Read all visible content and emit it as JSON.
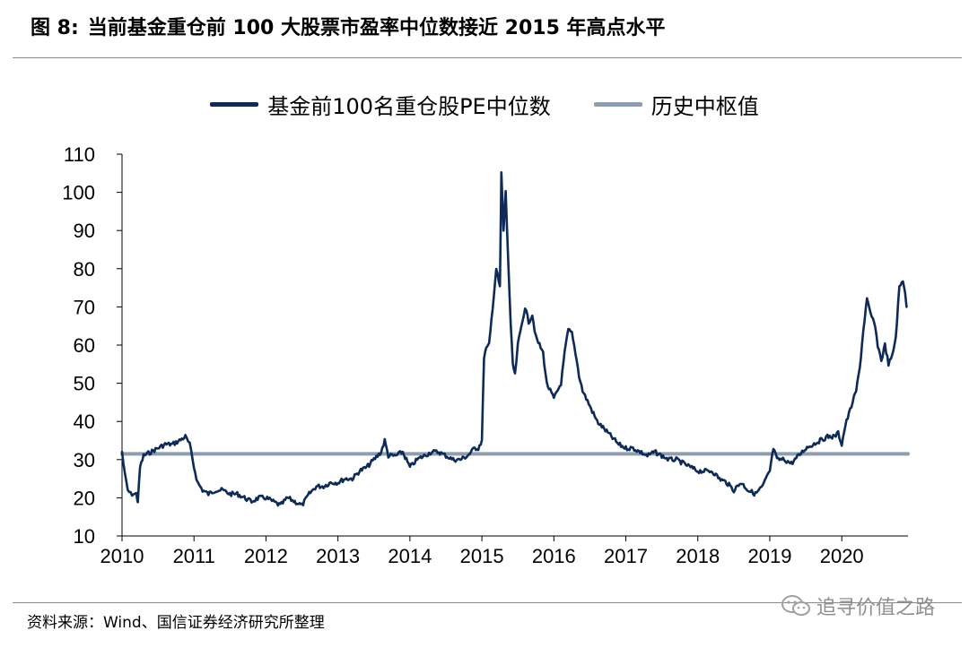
{
  "figure": {
    "number": "图 8:",
    "title": "当前基金重仓前 100 大股票市盈率中位数接近 2015 年高点水平"
  },
  "source": "资料来源：Wind、国信证券经济研究所整理",
  "watermark": {
    "text": "追寻价值之路",
    "icon": "wechat-icon"
  },
  "chart_data": {
    "type": "line",
    "title": "",
    "xlabel": "",
    "ylabel": "",
    "x_ticks": [
      "2010",
      "2011",
      "2012",
      "2013",
      "2014",
      "2015",
      "2016",
      "2017",
      "2018",
      "2019",
      "2020"
    ],
    "y_ticks": [
      10,
      20,
      30,
      40,
      50,
      60,
      70,
      80,
      90,
      100,
      110
    ],
    "xlim": [
      2010,
      2020.92
    ],
    "ylim": [
      10,
      110
    ],
    "grid": false,
    "legend": "top",
    "series": [
      {
        "name": "基金前100名重仓股PE中位数",
        "color": "#0e2a58",
        "x": [
          2010.0,
          2010.04,
          2010.08,
          2010.12,
          2010.16,
          2010.2,
          2010.22,
          2010.25,
          2010.3,
          2010.4,
          2010.5,
          2010.6,
          2010.7,
          2010.8,
          2010.88,
          2010.94,
          2011.0,
          2011.05,
          2011.12,
          2011.2,
          2011.3,
          2011.4,
          2011.5,
          2011.6,
          2011.7,
          2011.8,
          2011.9,
          2012.0,
          2012.1,
          2012.2,
          2012.3,
          2012.4,
          2012.5,
          2012.6,
          2012.7,
          2012.8,
          2012.9,
          2013.0,
          2013.1,
          2013.2,
          2013.3,
          2013.4,
          2013.5,
          2013.6,
          2013.65,
          2013.7,
          2013.8,
          2013.9,
          2014.0,
          2014.1,
          2014.2,
          2014.3,
          2014.4,
          2014.5,
          2014.6,
          2014.7,
          2014.8,
          2014.9,
          2014.95,
          2015.0,
          2015.03,
          2015.06,
          2015.1,
          2015.15,
          2015.2,
          2015.25,
          2015.27,
          2015.3,
          2015.33,
          2015.36,
          2015.4,
          2015.43,
          2015.46,
          2015.5,
          2015.55,
          2015.6,
          2015.65,
          2015.7,
          2015.75,
          2015.8,
          2015.85,
          2015.9,
          2015.95,
          2016.0,
          2016.05,
          2016.1,
          2016.15,
          2016.2,
          2016.25,
          2016.3,
          2016.35,
          2016.4,
          2016.45,
          2016.5,
          2016.6,
          2016.7,
          2016.8,
          2016.9,
          2017.0,
          2017.1,
          2017.2,
          2017.3,
          2017.4,
          2017.5,
          2017.6,
          2017.7,
          2017.8,
          2017.9,
          2018.0,
          2018.1,
          2018.2,
          2018.3,
          2018.4,
          2018.5,
          2018.6,
          2018.7,
          2018.8,
          2018.9,
          2019.0,
          2019.05,
          2019.1,
          2019.2,
          2019.3,
          2019.4,
          2019.5,
          2019.6,
          2019.7,
          2019.8,
          2019.9,
          2019.95,
          2020.0,
          2020.05,
          2020.1,
          2020.15,
          2020.2,
          2020.25,
          2020.3,
          2020.35,
          2020.4,
          2020.45,
          2020.5,
          2020.55,
          2020.6,
          2020.65,
          2020.7,
          2020.75,
          2020.8,
          2020.85,
          2020.88,
          2020.9
        ],
        "values": [
          32,
          26,
          22,
          21,
          21,
          21,
          19,
          28,
          31,
          32,
          33,
          34,
          34,
          35,
          36,
          34,
          28,
          24,
          22,
          21,
          22,
          22,
          21,
          21,
          20,
          19,
          20,
          20,
          19,
          18,
          20,
          19,
          18,
          21,
          23,
          23,
          24,
          24,
          25,
          25,
          27,
          28,
          30,
          32,
          35,
          31,
          31,
          32,
          28,
          30,
          31,
          32,
          32,
          31,
          30,
          30,
          31,
          33,
          33,
          35,
          57,
          59,
          60,
          70,
          80,
          75,
          105,
          90,
          100,
          85,
          65,
          55,
          52,
          60,
          65,
          70,
          66,
          68,
          62,
          60,
          58,
          50,
          48,
          46,
          48,
          50,
          58,
          64,
          63,
          58,
          52,
          48,
          46,
          44,
          40,
          38,
          36,
          34,
          33,
          33,
          32,
          31,
          32,
          31,
          30,
          30,
          29,
          28,
          27,
          27,
          27,
          25,
          24,
          22,
          24,
          22,
          21,
          23,
          27,
          33,
          30,
          30,
          29,
          31,
          33,
          34,
          35,
          36,
          36,
          37,
          34,
          39,
          42,
          45,
          48,
          54,
          64,
          72,
          68,
          66,
          60,
          56,
          60,
          55,
          57,
          62,
          75,
          77,
          74,
          70
        ]
      },
      {
        "name": "历史中枢值",
        "color": "#8e9eae",
        "x": [
          2010.0,
          2020.92
        ],
        "values": [
          31.5,
          31.5
        ]
      }
    ]
  }
}
